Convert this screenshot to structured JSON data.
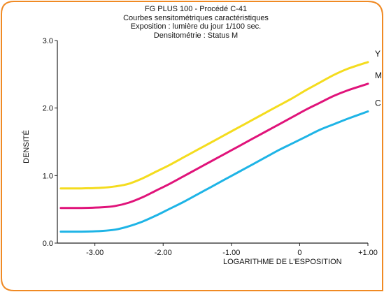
{
  "chart_data": {
    "type": "line",
    "title_lines": [
      "FG PLUS 100 - Procédé C-41",
      "Courbes sensitométriques caractéristiques",
      "Exposition : lumière du jour 1/100 sec.",
      "Densitométrie : Status M"
    ],
    "xlabel": "LOGARITHME DE L'ESPOSITION",
    "ylabel": "DENSITÉ",
    "xlim": [
      -3.55,
      1.0
    ],
    "ylim": [
      0.0,
      3.0
    ],
    "x_ticks": [
      -3.0,
      -2.0,
      -1.0,
      0.0,
      1.0
    ],
    "x_tick_labels": [
      "-3.00",
      "-2.00",
      "-1.00",
      "0",
      "+1.00"
    ],
    "y_ticks": [
      0.0,
      1.0,
      2.0,
      3.0
    ],
    "y_tick_labels": [
      "0.0",
      "1.0",
      "2.0",
      "3.0"
    ],
    "grid": false,
    "series": [
      {
        "name": "Y",
        "color": "#f4dc1e",
        "x": [
          -3.5,
          -3.2,
          -2.9,
          -2.7,
          -2.5,
          -2.3,
          -2.1,
          -1.9,
          -1.7,
          -1.5,
          -1.3,
          -1.1,
          -0.9,
          -0.7,
          -0.5,
          -0.3,
          -0.1,
          0.1,
          0.3,
          0.5,
          0.7,
          1.0
        ],
        "y": [
          0.81,
          0.81,
          0.82,
          0.84,
          0.88,
          0.96,
          1.06,
          1.16,
          1.27,
          1.38,
          1.49,
          1.6,
          1.71,
          1.82,
          1.93,
          2.04,
          2.15,
          2.27,
          2.38,
          2.49,
          2.58,
          2.68
        ]
      },
      {
        "name": "M",
        "color": "#e0137a",
        "x": [
          -3.5,
          -3.2,
          -2.9,
          -2.7,
          -2.5,
          -2.3,
          -2.1,
          -1.9,
          -1.7,
          -1.5,
          -1.3,
          -1.1,
          -0.9,
          -0.7,
          -0.5,
          -0.3,
          -0.1,
          0.1,
          0.3,
          0.5,
          0.7,
          1.0
        ],
        "y": [
          0.52,
          0.52,
          0.53,
          0.55,
          0.6,
          0.68,
          0.78,
          0.88,
          0.99,
          1.1,
          1.21,
          1.32,
          1.43,
          1.54,
          1.65,
          1.76,
          1.87,
          1.98,
          2.08,
          2.18,
          2.26,
          2.36
        ]
      },
      {
        "name": "C",
        "color": "#1eb4e6",
        "x": [
          -3.5,
          -3.2,
          -2.9,
          -2.7,
          -2.5,
          -2.3,
          -2.1,
          -1.9,
          -1.7,
          -1.5,
          -1.3,
          -1.1,
          -0.9,
          -0.7,
          -0.5,
          -0.3,
          -0.1,
          0.1,
          0.3,
          0.5,
          0.7,
          1.0
        ],
        "y": [
          0.17,
          0.17,
          0.18,
          0.2,
          0.25,
          0.32,
          0.41,
          0.51,
          0.61,
          0.72,
          0.83,
          0.94,
          1.05,
          1.16,
          1.27,
          1.38,
          1.48,
          1.58,
          1.68,
          1.76,
          1.84,
          1.95
        ]
      }
    ],
    "frame_color": "#f08a24"
  }
}
